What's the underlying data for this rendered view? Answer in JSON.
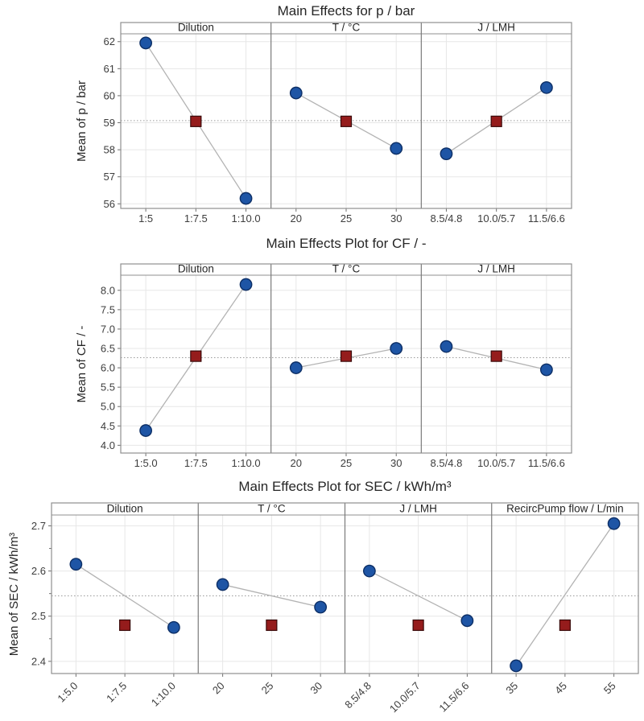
{
  "page": {
    "background": "#ffffff",
    "description": "Three stacked main effects plots"
  },
  "style": {
    "corner_fill": "#1e55a5",
    "corner_stroke": "#0d2f66",
    "center_fill": "#951c1c",
    "center_stroke": "#3a0a0a",
    "series_line": "#b3b3b3",
    "ref_line": "#9a9a9a",
    "grid": "#e7e7e7",
    "border": "#8f8f8f",
    "separator": "#7a7a7a",
    "axis_tick": "#6f6f6f",
    "text_dark": "#262626",
    "text_tick": "#3d3d3d"
  },
  "chart_data": [
    {
      "type": "line",
      "title": "Main Effects for p / bar",
      "ylabel": "Mean of p / bar",
      "yticks": [
        56,
        57,
        58,
        59,
        60,
        61,
        62
      ],
      "ytick_labels": [
        "56",
        "57",
        "58",
        "59",
        "60",
        "61",
        "62"
      ],
      "ylim": [
        55.83,
        62.29
      ],
      "grid": true,
      "reference_line": 59.08,
      "legend": "none",
      "panels": [
        {
          "label": "Dilution",
          "categories": [
            "1:5",
            "1:7.5",
            "1:10.0"
          ],
          "values": [
            61.95,
            59.05,
            56.2
          ],
          "markers": [
            "circle",
            "square",
            "circle"
          ]
        },
        {
          "label": "T / °C",
          "categories": [
            "20",
            "25",
            "30"
          ],
          "values": [
            60.1,
            59.05,
            58.05
          ],
          "markers": [
            "circle",
            "square",
            "circle"
          ]
        },
        {
          "label": "J / LMH",
          "categories": [
            "8.5/4.8",
            "10.0/5.7",
            "11.5/6.6"
          ],
          "values": [
            57.85,
            59.05,
            60.3
          ],
          "markers": [
            "circle",
            "square",
            "circle"
          ]
        }
      ]
    },
    {
      "type": "line",
      "title": "Main Effects Plot for CF / -",
      "ylabel": "Mean of CF / -",
      "yticks": [
        4.0,
        4.5,
        5.0,
        5.5,
        6.0,
        6.5,
        7.0,
        7.5,
        8.0
      ],
      "ytick_labels": [
        "4.0",
        "4.5",
        "5.0",
        "5.5",
        "6.0",
        "6.5",
        "7.0",
        "7.5",
        "8.0"
      ],
      "ylim": [
        3.8,
        8.39
      ],
      "grid": true,
      "reference_line": 6.26,
      "legend": "none",
      "panels": [
        {
          "label": "Dilution",
          "categories": [
            "1:5.0",
            "1:7.5",
            "1:10.0"
          ],
          "values": [
            4.38,
            6.3,
            8.15
          ],
          "markers": [
            "circle",
            "square",
            "circle"
          ]
        },
        {
          "label": "T / °C",
          "categories": [
            "20",
            "25",
            "30"
          ],
          "values": [
            6.0,
            6.3,
            6.5
          ],
          "markers": [
            "circle",
            "square",
            "circle"
          ]
        },
        {
          "label": "J / LMH",
          "categories": [
            "8.5/4.8",
            "10.0/5.7",
            "11.5/6.6"
          ],
          "values": [
            6.55,
            6.3,
            5.95
          ],
          "markers": [
            "circle",
            "square",
            "circle"
          ]
        }
      ]
    },
    {
      "type": "line",
      "title": "Main Effects Plot for SEC / kWh/m³",
      "ylabel": "Mean of SEC / kWh/m³",
      "yticks": [
        2.4,
        2.5,
        2.6,
        2.7
      ],
      "ytick_labels": [
        "2.4",
        "2.5",
        "2.6",
        "2.7"
      ],
      "yticks_minor": [
        2.45,
        2.55,
        2.65
      ],
      "ylim": [
        2.373,
        2.724
      ],
      "grid": true,
      "reference_line": 2.545,
      "legend": "none",
      "rotated_xlabels": true,
      "panels": [
        {
          "label": "Dilution",
          "categories": [
            "1:5.0",
            "1:7.5",
            "1:10.0"
          ],
          "values": [
            2.615,
            2.48,
            2.475
          ],
          "markers": [
            "circle",
            "square",
            "circle"
          ]
        },
        {
          "label": "T / °C",
          "categories": [
            "20",
            "25",
            "30"
          ],
          "values": [
            2.57,
            2.48,
            2.52
          ],
          "markers": [
            "circle",
            "square",
            "circle"
          ]
        },
        {
          "label": "J / LMH",
          "categories": [
            "8.5/4.8",
            "10.0/5.7",
            "11.5/6.6"
          ],
          "values": [
            2.6,
            2.48,
            2.49
          ],
          "markers": [
            "circle",
            "square",
            "circle"
          ]
        },
        {
          "label": "RecircPump flow / L/min",
          "categories": [
            "35",
            "45",
            "55"
          ],
          "values": [
            2.39,
            2.48,
            2.705
          ],
          "markers": [
            "circle",
            "square",
            "circle"
          ]
        }
      ]
    }
  ]
}
